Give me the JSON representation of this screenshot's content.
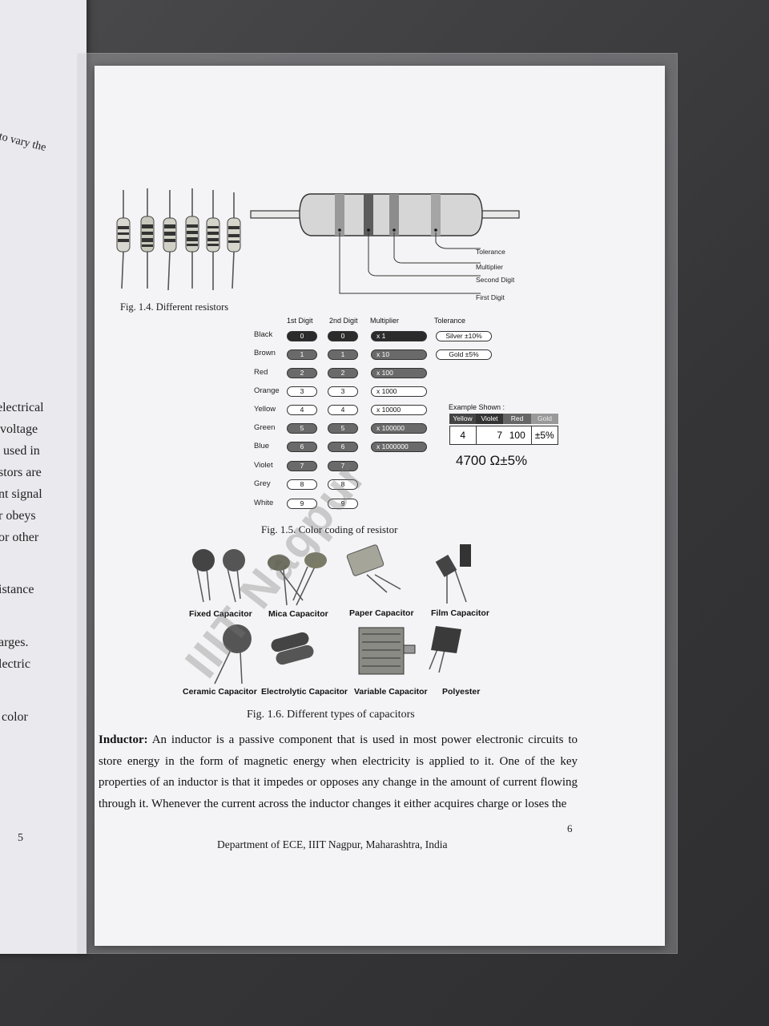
{
  "left_page": {
    "lines": [
      "to vary the",
      "electrical",
      "voltage",
      "used in",
      "stors are",
      "nt signal",
      "r obeys",
      "or other",
      "istance",
      "arges.",
      "lectric",
      "color"
    ],
    "page_number": "5"
  },
  "figures": {
    "fig_1_4": {
      "caption": "Fig. 1.4. Different resistors",
      "labels": [
        "Tolerance",
        "Multiplier",
        "Second Digit",
        "First Digit"
      ]
    },
    "fig_1_5": {
      "caption": "Fig. 1.5. Color coding of resistor",
      "headers": [
        "1st Digit",
        "2nd Digit",
        "Multiplier",
        "Tolerance"
      ],
      "colors": [
        "Black",
        "Brown",
        "Red",
        "Orange",
        "Yellow",
        "Green",
        "Blue",
        "Violet",
        "Grey",
        "White"
      ],
      "digits": [
        "0",
        "1",
        "2",
        "3",
        "4",
        "5",
        "6",
        "7",
        "8",
        "9"
      ],
      "multipliers": [
        "x 1",
        "x 10",
        "x 100",
        "x 1000",
        "x 10000",
        "x 100000",
        "x 1000000"
      ],
      "tolerances": [
        "Silver ±10%",
        "Gold ±5%"
      ],
      "example": {
        "title": "Example Shown :",
        "bands": [
          "Yellow",
          "Violet",
          "Red",
          "Gold"
        ],
        "values": [
          "4",
          "7",
          "100",
          "±5%"
        ],
        "result": "4700 Ω±5%"
      }
    },
    "fig_1_6": {
      "caption": "Fig. 1.6. Different types of capacitors",
      "row1": [
        "Fixed Capacitor",
        "Mica Capacitor",
        "Paper Capacitor",
        "Film Capacitor"
      ],
      "row2": [
        "Ceramic Capacitor",
        "Electrolytic Capacitor",
        "Variable Capacitor",
        "Polyester"
      ]
    }
  },
  "watermark": "IIIT Nagpur",
  "body": {
    "term": "Inductor:",
    "text": "An inductor is a passive component that is used in most power electronic circuits to store energy in the form of magnetic energy when electricity is applied to it. One of the key properties of an inductor is that it impedes or opposes any change in the amount of current flowing through it. Whenever the current across the inductor changes it either acquires charge or loses the"
  },
  "page_number": "6",
  "footer": "Department of ECE, IIIT Nagpur, Maharashtra, India"
}
